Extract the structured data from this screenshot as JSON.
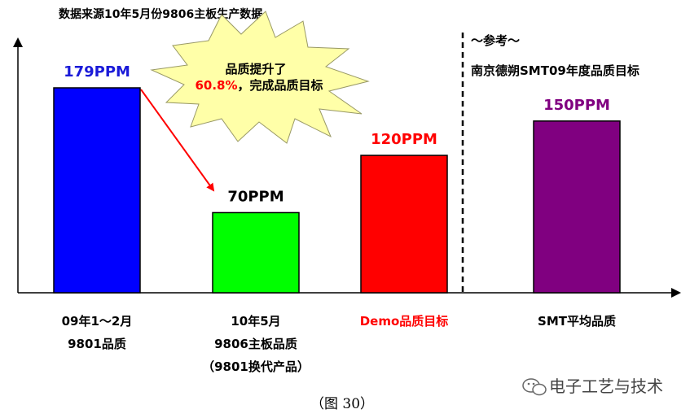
{
  "chart_data": {
    "type": "bar",
    "title": "数据来源10年5月份9806主板生产数据",
    "categories": [
      [
        "09年1～2月",
        "9801品质"
      ],
      [
        "10年5月",
        "9806主板品质",
        "（9801换代产品）"
      ],
      [
        "Demo品质目标"
      ],
      [
        "SMT平均品质"
      ]
    ],
    "values": [
      179,
      70,
      120,
      150
    ],
    "value_labels": [
      "179PPM",
      "70PPM",
      "120PPM",
      "150PPM"
    ],
    "unit": "PPM",
    "bar_colors": [
      "#0000ff",
      "#00ff00",
      "#ff0000",
      "#800080"
    ],
    "value_label_colors": [
      "#1a1ad8",
      "#000000",
      "#ff0000",
      "#800080"
    ],
    "category_label_colors": [
      "#000000",
      "#000000",
      "#ff0000",
      "#000000"
    ],
    "ylim": [
      0,
      179
    ],
    "xlabel": "",
    "ylabel": "",
    "grid": false,
    "callout": {
      "line1": "品质提升了",
      "highlight": "60.8%",
      "line2_rest": "，完成品质目标"
    },
    "reference": {
      "title": "～参考～",
      "subtitle": "南京德朔SMT09年度品质目标"
    }
  },
  "caption": "（图  30）",
  "watermark": "电子工艺与技术",
  "colors": {
    "arrow": "#ff0000",
    "burst_fill": "#ffffa8",
    "highlight": "#ff0000"
  }
}
